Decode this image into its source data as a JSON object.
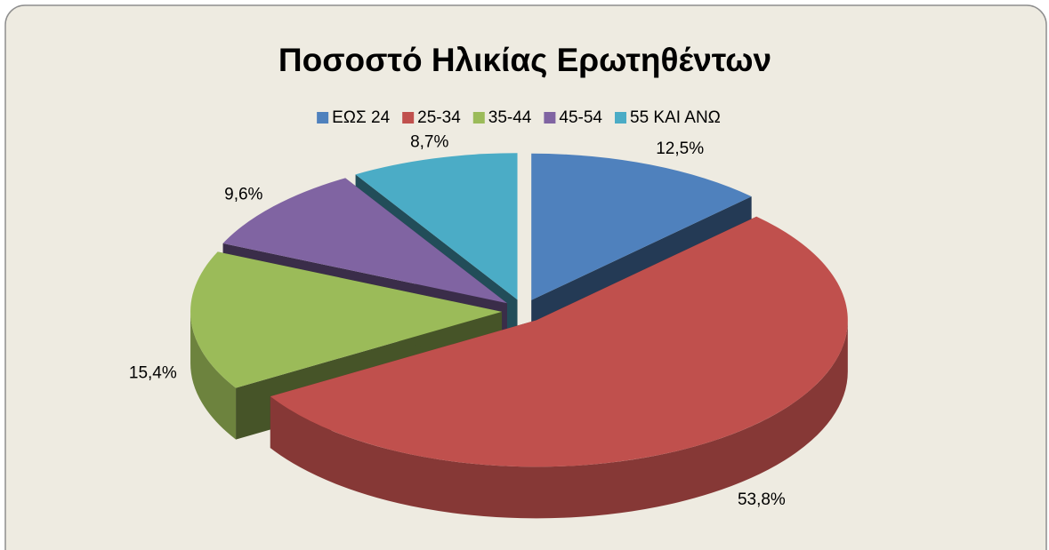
{
  "chart_data": {
    "type": "pie3d",
    "title": "Ποσοστό Ηλικίας Ερωτηθέντων",
    "categories": [
      "ΕΩΣ 24",
      "25-34",
      "35-44",
      "45-54",
      "55 ΚΑΙ ΑΝΩ"
    ],
    "values": [
      12.5,
      53.8,
      15.4,
      9.6,
      8.7
    ],
    "value_labels": [
      "12,5%",
      "53,8%",
      "15,4%",
      "9,6%",
      "8,7%"
    ],
    "colors": [
      "#4f81bd",
      "#c0504d",
      "#9bbb59",
      "#8064a2",
      "#4bacc6"
    ],
    "legend": "top"
  }
}
